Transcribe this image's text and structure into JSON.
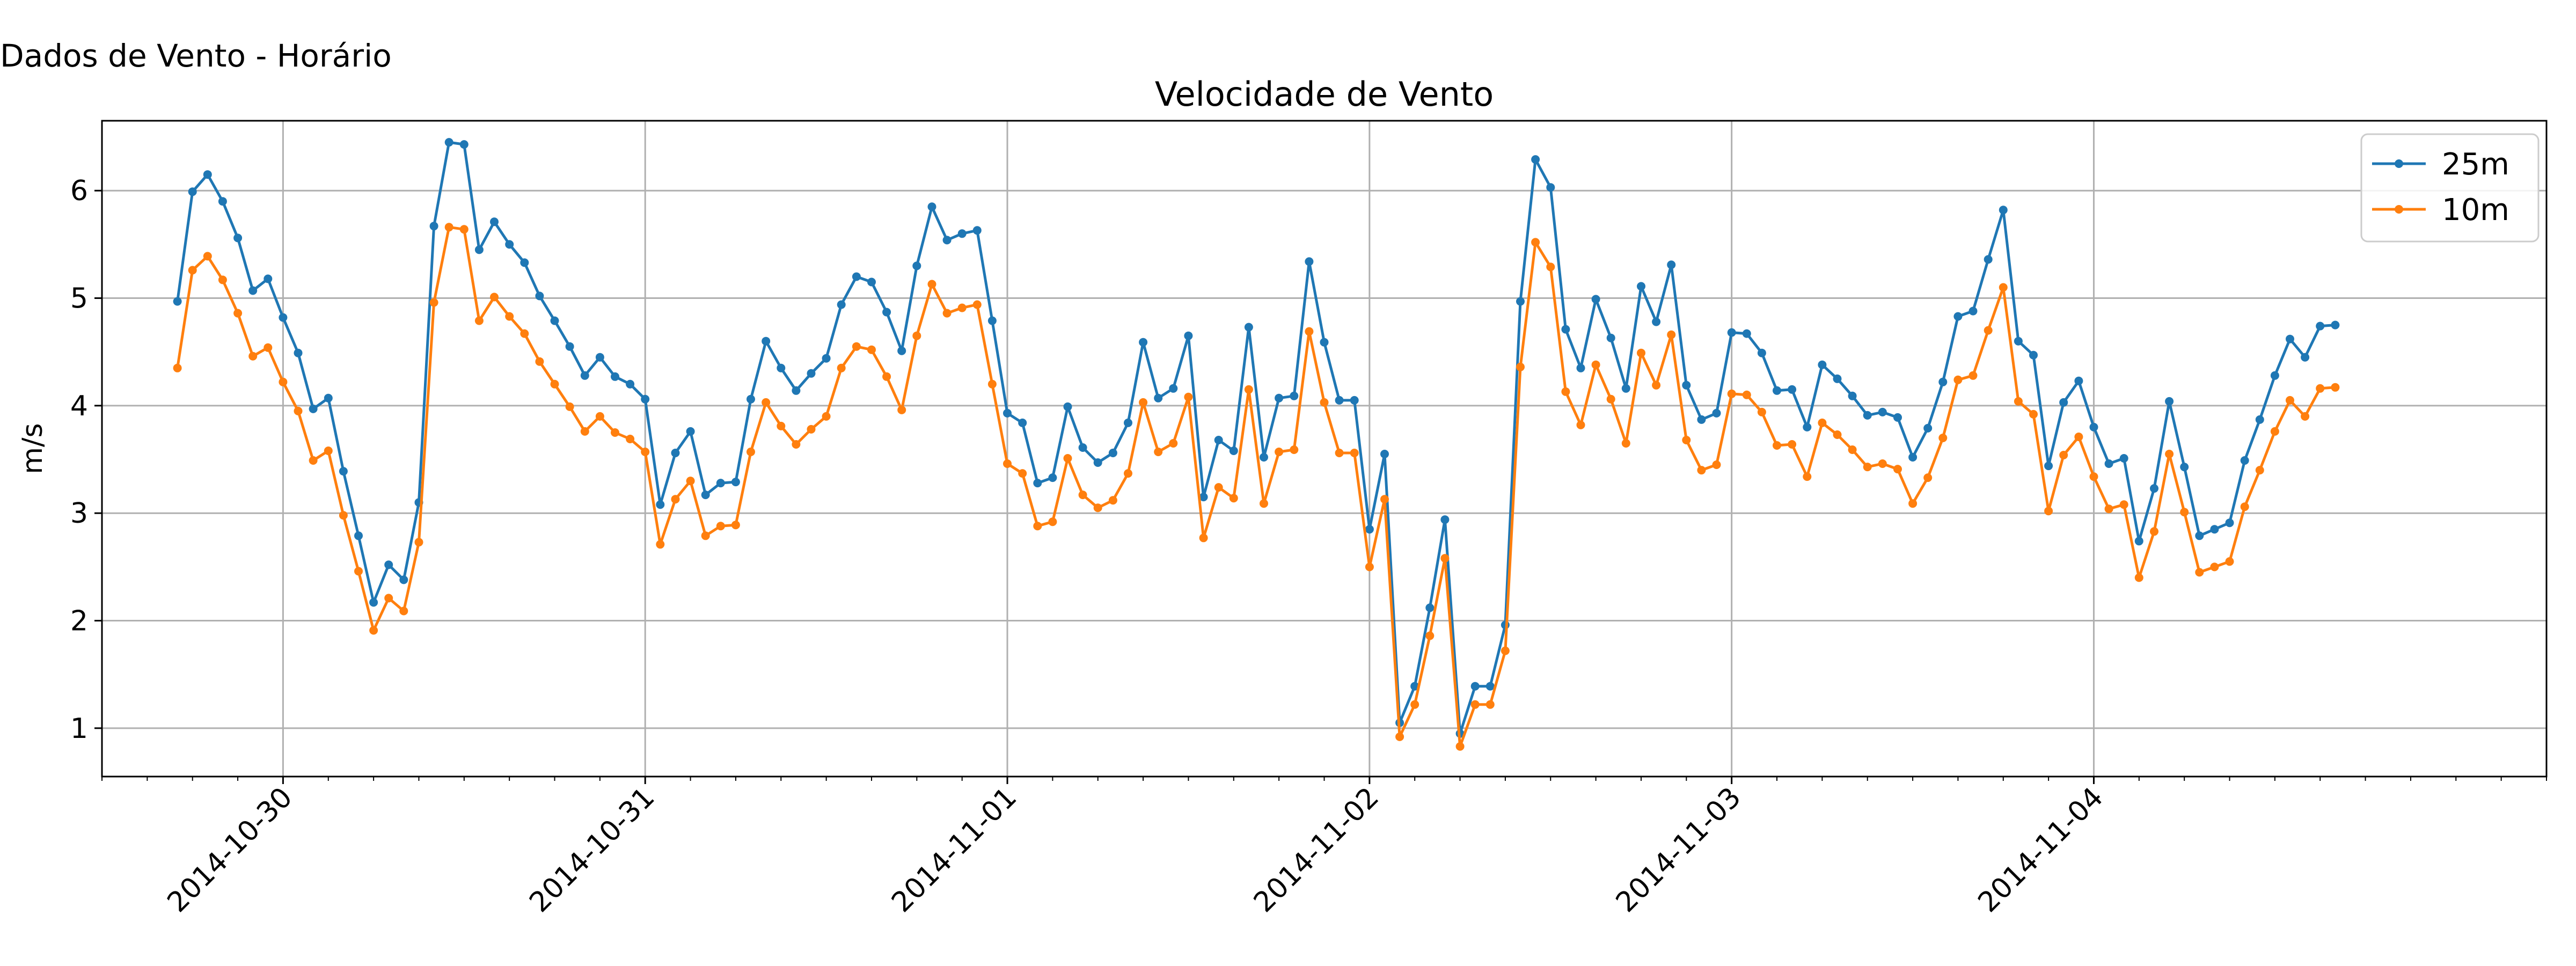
{
  "figure": {
    "title": "Dados de Vento - Horário"
  },
  "chart_data": {
    "type": "line",
    "title": "Velocidade de Vento",
    "xlabel": "",
    "ylabel": "m/s",
    "x_start": "2014-10-29T17:00",
    "x_step_hours": 1,
    "x_tick_labels": [
      "2014-10-30",
      "2014-10-31",
      "2014-11-01",
      "2014-11-02",
      "2014-11-03",
      "2014-11-04"
    ],
    "xlim": [
      "2014-10-29T12:00",
      "2014-11-05T06:00"
    ],
    "ylim": [
      0.55,
      6.65
    ],
    "y_ticks": [
      1,
      2,
      3,
      4,
      5,
      6
    ],
    "grid": true,
    "legend": "top-right",
    "series": [
      {
        "name": "25m",
        "color": "#1f77b4",
        "values": [
          4.97,
          5.99,
          6.15,
          5.9,
          5.56,
          5.07,
          5.18,
          4.82,
          4.49,
          3.97,
          4.07,
          3.39,
          2.79,
          2.17,
          2.52,
          2.38,
          3.1,
          5.67,
          6.45,
          6.43,
          5.45,
          5.71,
          5.5,
          5.33,
          5.02,
          4.79,
          4.55,
          4.28,
          4.45,
          4.27,
          4.2,
          4.06,
          3.08,
          3.56,
          3.76,
          3.17,
          3.28,
          3.29,
          4.06,
          4.6,
          4.35,
          4.14,
          4.3,
          4.44,
          4.94,
          5.2,
          5.15,
          4.87,
          4.51,
          5.3,
          5.85,
          5.54,
          5.6,
          5.63,
          4.79,
          3.93,
          3.84,
          3.28,
          3.33,
          3.99,
          3.61,
          3.47,
          3.56,
          3.84,
          4.59,
          4.07,
          4.16,
          4.65,
          3.15,
          3.68,
          3.58,
          4.73,
          3.52,
          4.07,
          4.09,
          5.34,
          4.59,
          4.05,
          4.05,
          2.85,
          3.55,
          1.05,
          1.39,
          2.12,
          2.94,
          0.95,
          1.39,
          1.39,
          1.96,
          4.97,
          6.29,
          6.03,
          4.71,
          4.35,
          4.99,
          4.63,
          4.16,
          5.11,
          4.78,
          5.31,
          4.19,
          3.87,
          3.93,
          4.68,
          4.67,
          4.49,
          4.14,
          4.15,
          3.8,
          4.38,
          4.25,
          4.09,
          3.91,
          3.94,
          3.89,
          3.52,
          3.79,
          4.22,
          4.83,
          4.88,
          5.36,
          5.82,
          4.6,
          4.47,
          3.44,
          4.03,
          4.23,
          3.8,
          3.46,
          3.51,
          2.74,
          3.23,
          4.04,
          3.43,
          2.79,
          2.85,
          2.91,
          3.49,
          3.87,
          4.28,
          4.62,
          4.45,
          4.74,
          4.75
        ]
      },
      {
        "name": "10m",
        "color": "#ff7f0e",
        "values": [
          4.35,
          5.26,
          5.39,
          5.17,
          4.86,
          4.46,
          4.54,
          4.22,
          3.95,
          3.49,
          3.58,
          2.98,
          2.46,
          1.91,
          2.21,
          2.09,
          2.73,
          4.96,
          5.66,
          5.64,
          4.79,
          5.01,
          4.83,
          4.67,
          4.41,
          4.2,
          3.99,
          3.76,
          3.9,
          3.75,
          3.69,
          3.57,
          2.71,
          3.13,
          3.3,
          2.79,
          2.88,
          2.89,
          3.57,
          4.03,
          3.81,
          3.64,
          3.78,
          3.9,
          4.35,
          4.55,
          4.52,
          4.27,
          3.96,
          4.65,
          5.13,
          4.86,
          4.91,
          4.94,
          4.2,
          3.46,
          3.37,
          2.88,
          2.92,
          3.51,
          3.17,
          3.05,
          3.12,
          3.37,
          4.03,
          3.57,
          3.65,
          4.08,
          2.77,
          3.24,
          3.14,
          4.15,
          3.09,
          3.57,
          3.59,
          4.69,
          4.03,
          3.56,
          3.56,
          2.5,
          3.13,
          0.92,
          1.22,
          1.86,
          2.58,
          0.83,
          1.22,
          1.22,
          1.72,
          4.36,
          5.52,
          5.29,
          4.13,
          3.82,
          4.38,
          4.06,
          3.65,
          4.49,
          4.19,
          4.66,
          3.68,
          3.4,
          3.45,
          4.11,
          4.1,
          3.94,
          3.63,
          3.64,
          3.34,
          3.84,
          3.73,
          3.59,
          3.43,
          3.46,
          3.41,
          3.09,
          3.33,
          3.7,
          4.24,
          4.28,
          4.7,
          5.1,
          4.04,
          3.92,
          3.02,
          3.54,
          3.71,
          3.34,
          3.04,
          3.08,
          2.4,
          2.83,
          3.55,
          3.01,
          2.45,
          2.5,
          2.55,
          3.06,
          3.4,
          3.76,
          4.05,
          3.9,
          4.16,
          4.17
        ]
      }
    ]
  }
}
